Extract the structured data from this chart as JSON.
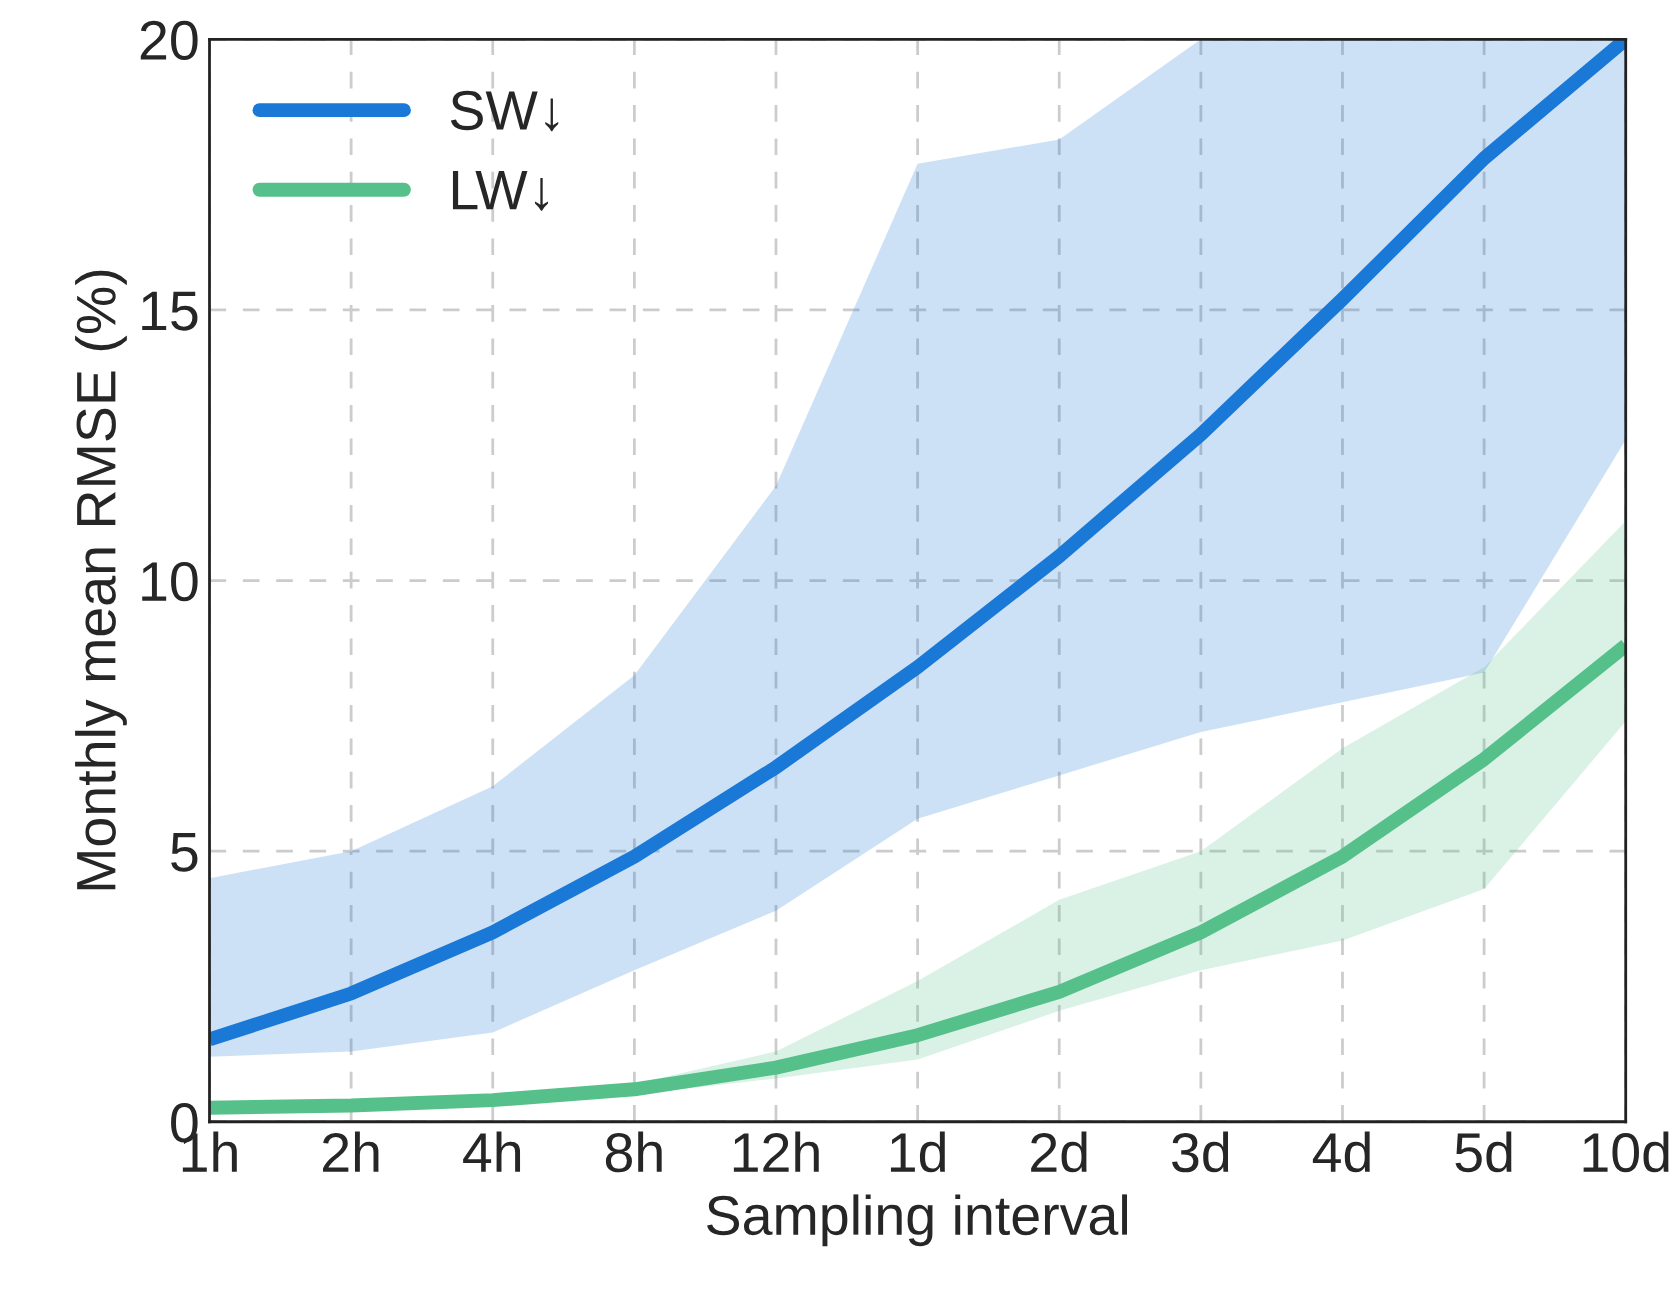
{
  "chart_data": {
    "type": "line",
    "xlabel": "Sampling interval",
    "ylabel": "Monthly mean RMSE (%)",
    "categories": [
      "1h",
      "2h",
      "4h",
      "8h",
      "12h",
      "1d",
      "2d",
      "3d",
      "4d",
      "5d",
      "10d"
    ],
    "series": [
      {
        "name": "SW↓",
        "color": "#1a78d6",
        "values": [
          1.52,
          2.37,
          3.5,
          4.9,
          6.55,
          8.4,
          10.45,
          12.7,
          15.2,
          17.8,
          20
        ],
        "lower": [
          1.2,
          1.3,
          1.65,
          2.8,
          3.9,
          5.6,
          6.4,
          7.2,
          7.75,
          8.3,
          12.6
        ],
        "upper": [
          4.5,
          5.0,
          6.2,
          8.25,
          11.75,
          17.7,
          18.15,
          20,
          20,
          20,
          20
        ]
      },
      {
        "name": "LW↓",
        "color": "#55c08a",
        "values": [
          0.26,
          0.3,
          0.4,
          0.6,
          1.0,
          1.6,
          2.4,
          3.5,
          4.9,
          6.7,
          8.8
        ],
        "lower": [
          0.22,
          0.25,
          0.35,
          0.5,
          0.8,
          1.15,
          2.05,
          2.8,
          3.35,
          4.3,
          7.4
        ],
        "upper": [
          0.3,
          0.35,
          0.45,
          0.7,
          1.3,
          2.6,
          4.1,
          5.0,
          6.9,
          8.4,
          11.1
        ]
      }
    ],
    "ylim": [
      0,
      20
    ],
    "yticks": [
      0,
      5,
      10,
      15,
      20
    ],
    "grid": true,
    "legend": "top left",
    "line_style": "solid"
  }
}
